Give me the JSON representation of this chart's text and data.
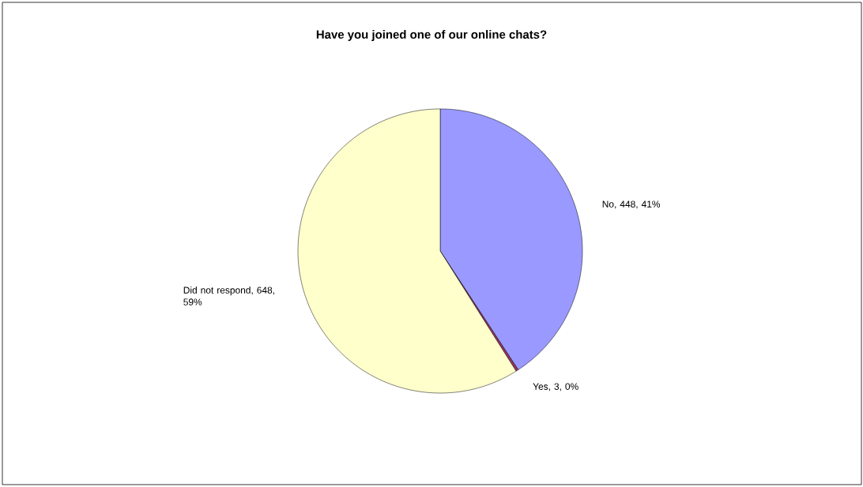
{
  "chart_data": {
    "type": "pie",
    "title": "Have you joined one of our online chats?",
    "categories": [
      "No, 448, 41%",
      "Yes, 3, 0%",
      "Did not respond, 648, 59%"
    ],
    "values": [
      448,
      3,
      648
    ],
    "colors": [
      "#9999ff",
      "#993366",
      "#ffffcc"
    ]
  }
}
